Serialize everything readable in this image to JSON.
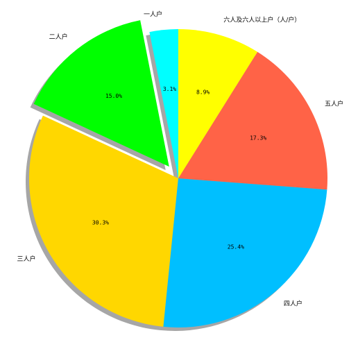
{
  "chart_data": {
    "type": "pie",
    "title": "",
    "start_angle_deg": 90,
    "direction": "counterclockwise",
    "shadow": true,
    "categories": [
      "一人户",
      "二人户",
      "三人户",
      "四人户",
      "五人户",
      "六人及六人以上户（人/户）"
    ],
    "values": [
      3.1,
      15.0,
      30.3,
      25.4,
      17.3,
      8.9
    ],
    "value_labels": [
      "3.1%",
      "15.0%",
      "30.3%",
      "25.4%",
      "17.3%",
      "8.9%"
    ],
    "colors": [
      "#00FFFF",
      "#00FF00",
      "#FFD700",
      "#00BFFF",
      "#FF6347",
      "#FFFF00"
    ],
    "explode": [
      0,
      0.1,
      0,
      0,
      0,
      0
    ]
  }
}
